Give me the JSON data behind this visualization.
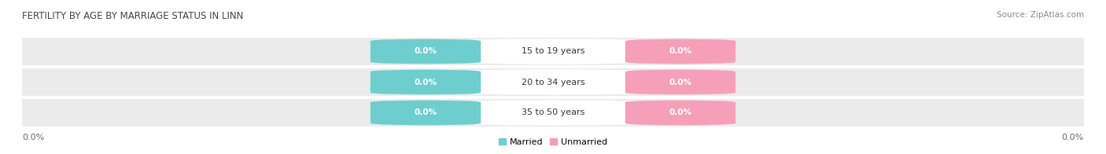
{
  "title": "FERTILITY BY AGE BY MARRIAGE STATUS IN LINN",
  "source": "Source: ZipAtlas.com",
  "categories": [
    "15 to 19 years",
    "20 to 34 years",
    "35 to 50 years"
  ],
  "married_values": [
    0.0,
    0.0,
    0.0
  ],
  "unmarried_values": [
    0.0,
    0.0,
    0.0
  ],
  "married_color": "#6ecece",
  "unmarried_color": "#f5a0b8",
  "bar_bg_color": "#ebebeb",
  "bar_center_color": "#ffffff",
  "title_fontsize": 8.5,
  "source_fontsize": 7.5,
  "badge_fontsize": 7.5,
  "label_fontsize": 8,
  "tick_fontsize": 8,
  "background_color": "#ffffff",
  "legend_labels": [
    "Married",
    "Unmarried"
  ]
}
